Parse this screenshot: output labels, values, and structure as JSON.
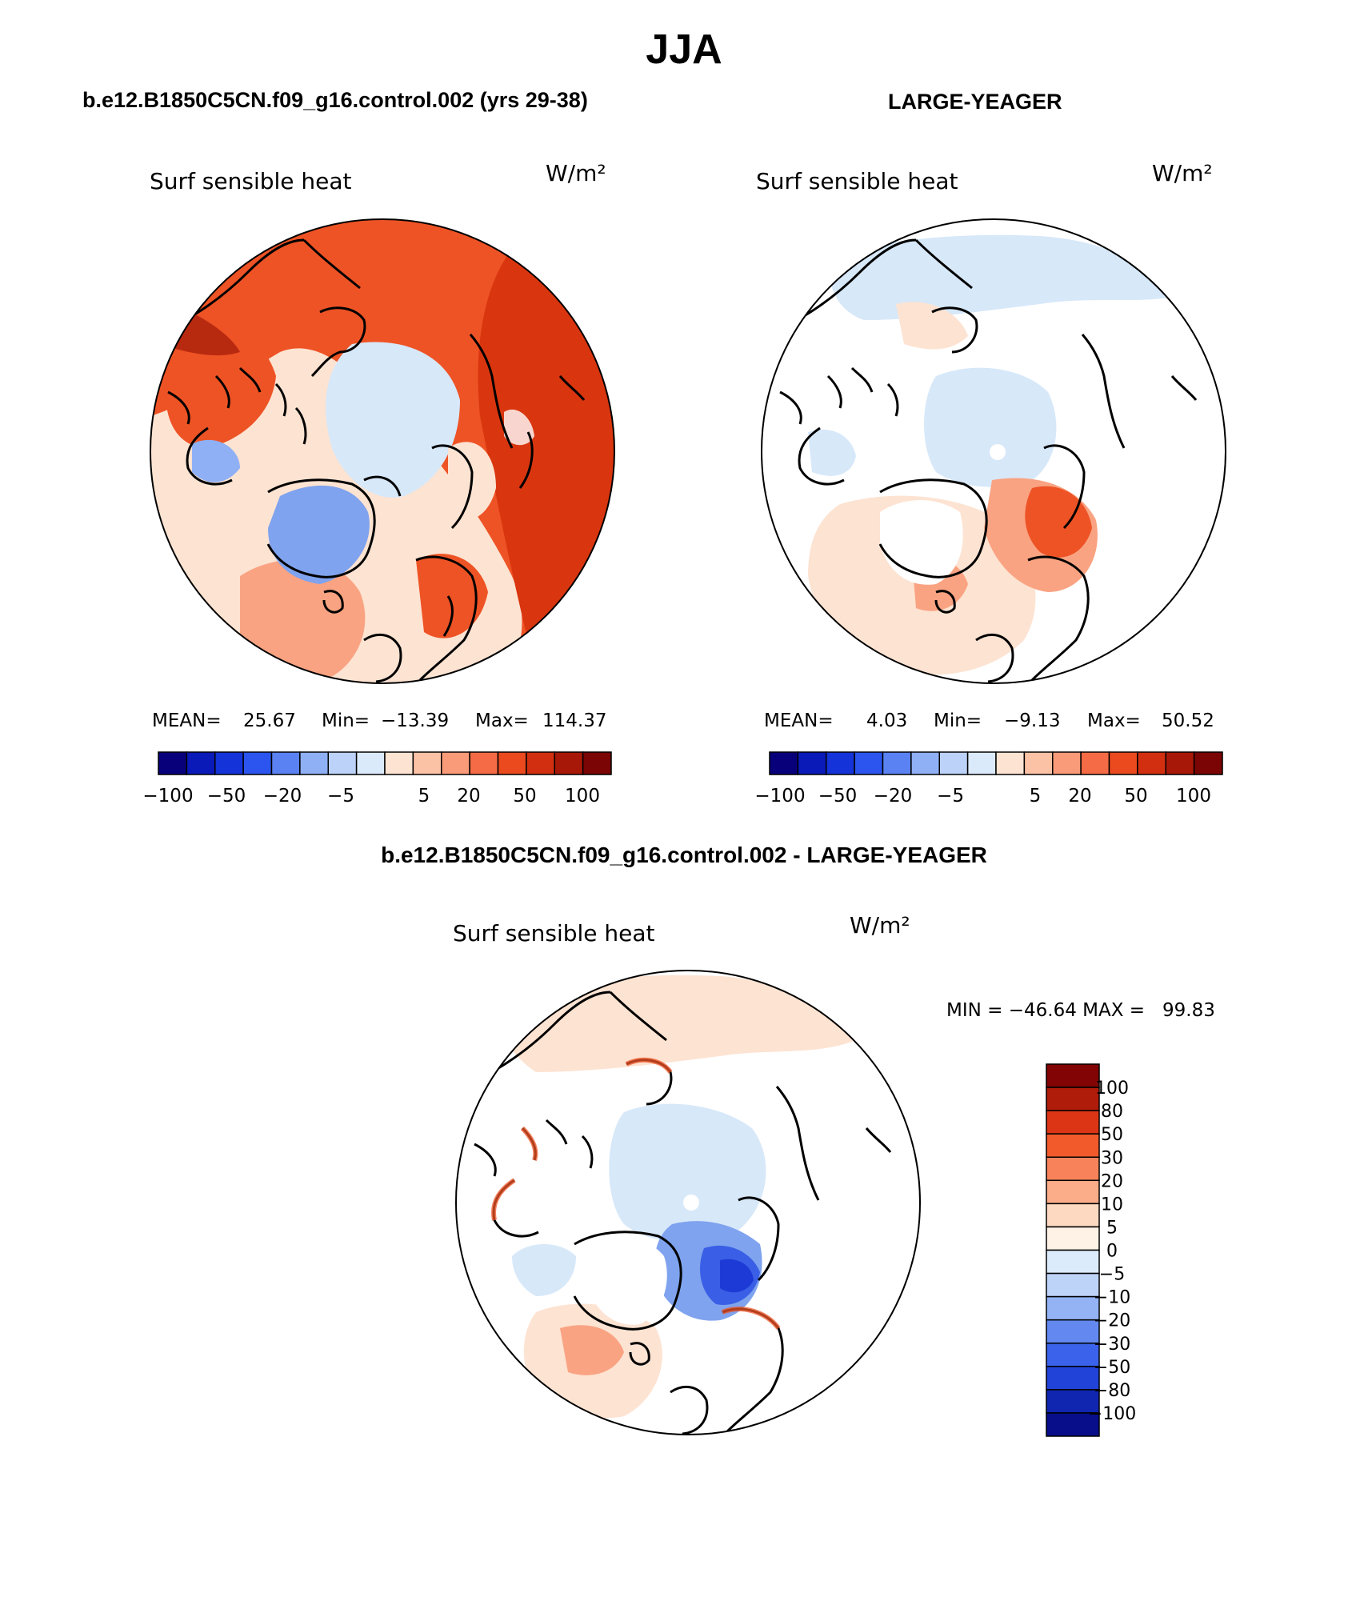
{
  "page_title": "JJA",
  "panels": [
    {
      "case_title": "b.e12.B1850C5CN.f09_g16.control.002 (yrs 29-38)",
      "variable": "Surf sensible heat",
      "units": "W/m²",
      "stats": {
        "mean_label": "MEAN=",
        "mean": "25.67",
        "min_label": "Min=",
        "min": "−13.39",
        "max_label": "Max=",
        "max": "114.37"
      }
    },
    {
      "case_title": "LARGE-YEAGER",
      "variable": "Surf sensible heat",
      "units": "W/m²",
      "stats": {
        "mean_label": "MEAN=",
        "mean": "4.03",
        "min_label": "Min=",
        "min": "−9.13",
        "max_label": "Max=",
        "max": "50.52"
      }
    },
    {
      "case_title": "b.e12.B1850C5CN.f09_g16.control.002 - LARGE-YEAGER",
      "variable": "Surf sensible heat",
      "units": "W/m²",
      "minmax_text": "MIN = −46.64 MAX =   99.83"
    }
  ],
  "colorbar_horizontal": {
    "colors": [
      "#08007a",
      "#0a1ab8",
      "#1433d8",
      "#2b55ee",
      "#5a82f2",
      "#8fb0f5",
      "#bcd2f8",
      "#dbeafa",
      "#fde3d2",
      "#fcc2a5",
      "#f99a78",
      "#f56b45",
      "#ea4a1e",
      "#d22f10",
      "#a81808",
      "#7a0504"
    ],
    "tick_labels": [
      "−100",
      "−50",
      "−20",
      "−5",
      "5",
      "20",
      "50",
      "100"
    ]
  },
  "colorbar_vertical": {
    "colors": [
      "#820404",
      "#b01c0a",
      "#dc3515",
      "#f25a2c",
      "#f8835a",
      "#fbac88",
      "#fdd9c2",
      "#fef1e6",
      "#dcebfb",
      "#bdd3f8",
      "#93b3f4",
      "#6389f0",
      "#3b62ea",
      "#2243d8",
      "#1026b0",
      "#080e8a"
    ],
    "tick_labels": [
      "100",
      "80",
      "50",
      "30",
      "20",
      "10",
      "5",
      "0",
      "−5",
      "−10",
      "−20",
      "−30",
      "−50",
      "−80",
      "−100"
    ]
  },
  "map_colors": {
    "land_white": "#ffffff",
    "ice_light_blue": "#d7e8f9",
    "ocean_light_pink": "#fde3d2",
    "pink_mid": "#f9a382",
    "orange_red": "#ee5325",
    "red_dark": "#d9360f",
    "red_deeper": "#b82a10",
    "blue_mid": "#7fa3ee",
    "blue_strong": "#3a5fe6",
    "blue_deep": "#1d3ad6",
    "coast": "#000000"
  }
}
